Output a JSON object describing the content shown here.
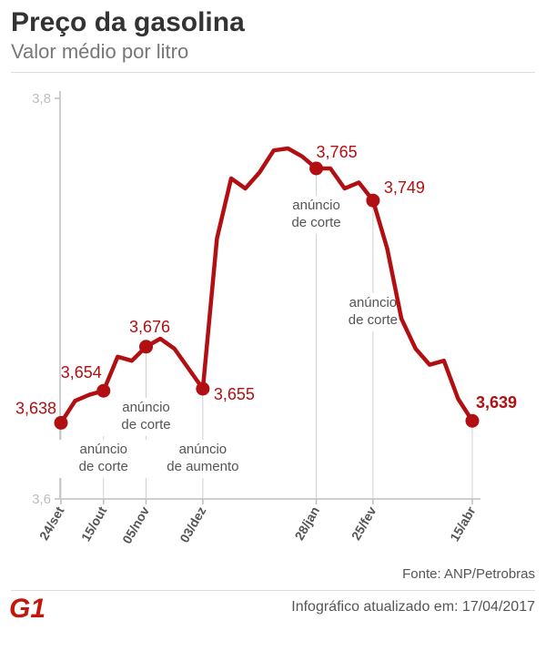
{
  "header": {
    "title": "Preço da gasolina",
    "subtitle": "Valor médio por litro"
  },
  "footer": {
    "source": "Fonte: ANP/Petrobras",
    "updated": "Infográfico atualizado em: 17/04/2017",
    "logo_text": "G1"
  },
  "colors": {
    "series": "#b20f12",
    "axis": "#bdbdbd",
    "text": "#555555",
    "logo": "#c4170c"
  },
  "chart_data": {
    "type": "line",
    "ylim": [
      3.6,
      3.8
    ],
    "yticks": [
      {
        "value": 3.8,
        "label": "3,8"
      },
      {
        "value": 3.6,
        "label": "3,6"
      }
    ],
    "x_range": [
      "2016-09-24",
      "2017-04-15"
    ],
    "xticks": [
      {
        "date": "2016-09-24",
        "label": "24/set"
      },
      {
        "date": "2016-10-15",
        "label": "15/out"
      },
      {
        "date": "2016-11-05",
        "label": "05/nov"
      },
      {
        "date": "2016-12-03",
        "label": "03/dez"
      },
      {
        "date": "2017-01-28",
        "label": "28/jan"
      },
      {
        "date": "2017-02-25",
        "label": "25/fev"
      },
      {
        "date": "2017-04-15",
        "label": "15/abr"
      }
    ],
    "series": [
      {
        "values": [
          {
            "date": "2016-09-24",
            "value": 3.638
          },
          {
            "date": "2016-10-01",
            "value": 3.649
          },
          {
            "date": "2016-10-08",
            "value": 3.652
          },
          {
            "date": "2016-10-15",
            "value": 3.654
          },
          {
            "date": "2016-10-22",
            "value": 3.671
          },
          {
            "date": "2016-10-29",
            "value": 3.669
          },
          {
            "date": "2016-11-05",
            "value": 3.676
          },
          {
            "date": "2016-11-12",
            "value": 3.68
          },
          {
            "date": "2016-11-19",
            "value": 3.675
          },
          {
            "date": "2016-11-26",
            "value": 3.665
          },
          {
            "date": "2016-12-03",
            "value": 3.655
          },
          {
            "date": "2016-12-10",
            "value": 3.73
          },
          {
            "date": "2016-12-17",
            "value": 3.76
          },
          {
            "date": "2016-12-24",
            "value": 3.755
          },
          {
            "date": "2016-12-31",
            "value": 3.763
          },
          {
            "date": "2017-01-07",
            "value": 3.774
          },
          {
            "date": "2017-01-14",
            "value": 3.775
          },
          {
            "date": "2017-01-21",
            "value": 3.771
          },
          {
            "date": "2017-01-28",
            "value": 3.765
          },
          {
            "date": "2017-02-04",
            "value": 3.765
          },
          {
            "date": "2017-02-11",
            "value": 3.755
          },
          {
            "date": "2017-02-18",
            "value": 3.758
          },
          {
            "date": "2017-02-25",
            "value": 3.749
          },
          {
            "date": "2017-03-04",
            "value": 3.725
          },
          {
            "date": "2017-03-11",
            "value": 3.69
          },
          {
            "date": "2017-03-18",
            "value": 3.675
          },
          {
            "date": "2017-03-25",
            "value": 3.667
          },
          {
            "date": "2017-04-01",
            "value": 3.669
          },
          {
            "date": "2017-04-08",
            "value": 3.65
          },
          {
            "date": "2017-04-15",
            "value": 3.639
          }
        ]
      }
    ],
    "labeled_points": [
      {
        "date": "2016-09-24",
        "value": 3.638,
        "label": "3,638",
        "bold": false
      },
      {
        "date": "2016-10-15",
        "value": 3.654,
        "label": "3,654",
        "bold": false
      },
      {
        "date": "2016-11-05",
        "value": 3.676,
        "label": "3,676",
        "bold": false
      },
      {
        "date": "2016-12-03",
        "value": 3.655,
        "label": "3,655",
        "bold": false
      },
      {
        "date": "2017-01-28",
        "value": 3.765,
        "label": "3,765",
        "bold": false
      },
      {
        "date": "2017-02-25",
        "value": 3.749,
        "label": "3,749",
        "bold": false
      },
      {
        "date": "2017-04-15",
        "value": 3.639,
        "label": "3,639",
        "bold": true
      }
    ],
    "annotations": [
      {
        "date": "2016-10-15",
        "lines": [
          "anúncio",
          "de corte"
        ]
      },
      {
        "date": "2016-11-05",
        "lines": [
          "anúncio",
          "de corte"
        ]
      },
      {
        "date": "2016-12-03",
        "lines": [
          "anúncio",
          "de aumento"
        ]
      },
      {
        "date": "2017-01-28",
        "lines": [
          "anúncio",
          "de corte"
        ]
      },
      {
        "date": "2017-02-25",
        "lines": [
          "anúncio",
          "de corte"
        ]
      }
    ]
  }
}
